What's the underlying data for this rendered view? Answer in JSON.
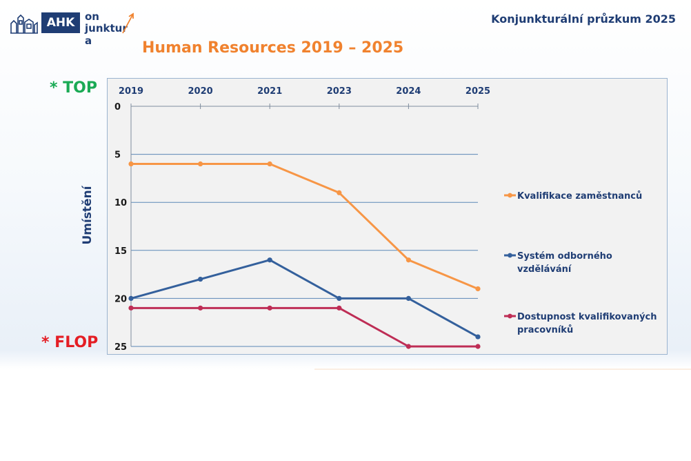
{
  "header": {
    "logo_ahk": "AHK",
    "logo_on": "on",
    "logo_junktura": "junktur",
    "logo_a": "a",
    "title": "Konjunkturální průzkum 2025"
  },
  "slide": {
    "title": "Human Resources 2019 – 2025",
    "top_label": "* TOP",
    "flop_label": "* FLOP"
  },
  "colors": {
    "orange": "#f79646",
    "blue": "#34609c",
    "crimson": "#be2d55",
    "grid": "#5b87b6",
    "navy": "#1f3d74"
  },
  "chart_data": {
    "type": "line",
    "ylabel": "Umístění",
    "y_axis": {
      "min": 0,
      "max": 25,
      "reversed": true,
      "ticks": [
        0,
        5,
        10,
        15,
        20,
        25
      ]
    },
    "categories": [
      "2019",
      "2020",
      "2021",
      "2023",
      "2024",
      "2025"
    ],
    "grid": true,
    "legend_position": "right",
    "series": [
      {
        "name": "Kvalifikace zaměstnanců",
        "name_lines": [
          "Kvalifikace zaměstnanců"
        ],
        "color": "#f79646",
        "values": [
          6,
          6,
          6,
          9,
          16,
          19
        ]
      },
      {
        "name": "Systém odborného vzdělávání",
        "name_lines": [
          "Systém odborného",
          "vzdělávání"
        ],
        "color": "#34609c",
        "values": [
          20,
          18,
          16,
          20,
          20,
          24
        ]
      },
      {
        "name": "Dostupnost kvalifikovaných pracovníků",
        "name_lines": [
          "Dostupnost kvalifikovaných",
          "pracovníků"
        ],
        "color": "#be2d55",
        "values": [
          21,
          21,
          21,
          21,
          25,
          25
        ]
      }
    ]
  }
}
